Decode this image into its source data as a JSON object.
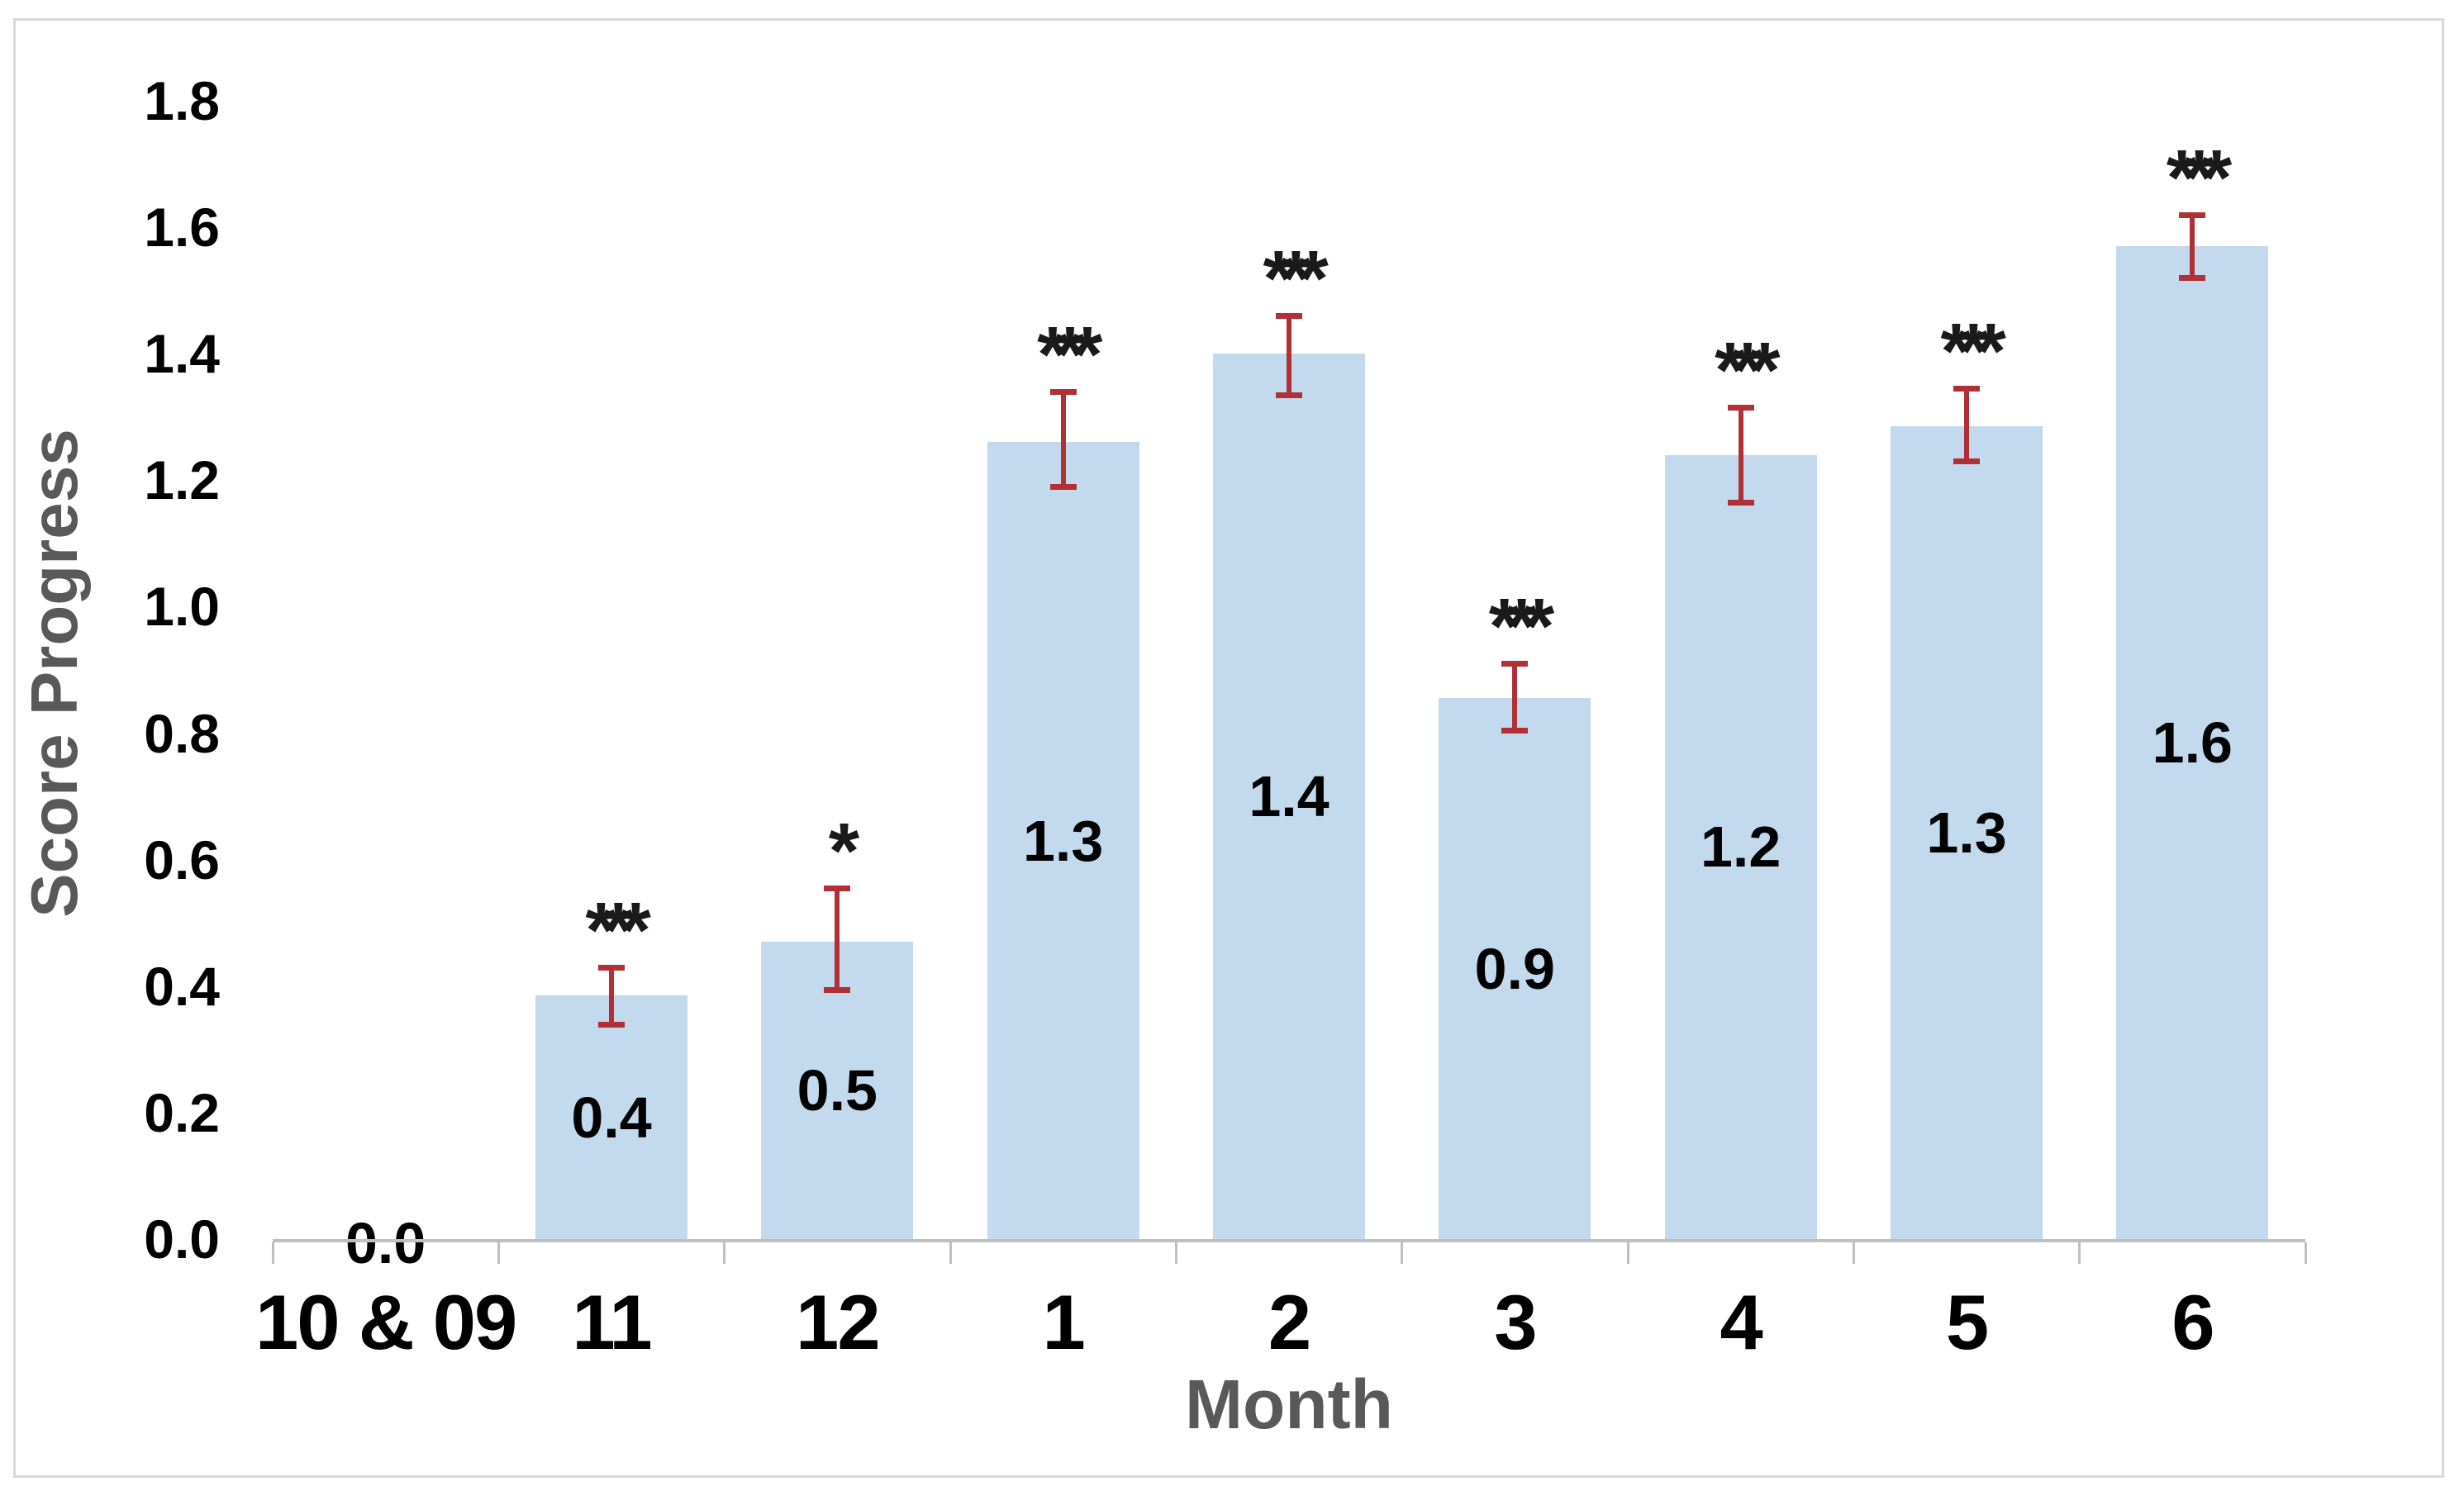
{
  "chart_data": {
    "type": "bar",
    "title": "",
    "xlabel": "Month",
    "ylabel": "Score Progress",
    "categories": [
      "10 & 09",
      "11",
      "12",
      "1",
      "2",
      "3",
      "4",
      "5",
      "6"
    ],
    "values": [
      0.0,
      0.4,
      0.5,
      1.3,
      1.4,
      0.9,
      1.2,
      1.3,
      1.6
    ],
    "data_labels": [
      "0.0",
      "0.4",
      "0.5",
      "1.3",
      "1.4",
      "0.9",
      "1.2",
      "1.3",
      "1.6"
    ],
    "bar_heights_plotted": [
      0,
      0.385,
      0.47,
      1.26,
      1.4,
      0.855,
      1.24,
      1.285,
      1.57
    ],
    "error_bars": [
      null,
      {
        "low": 0.34,
        "high": 0.43
      },
      {
        "low": 0.395,
        "high": 0.555
      },
      {
        "low": 1.19,
        "high": 1.34
      },
      {
        "low": 1.335,
        "high": 1.46
      },
      {
        "low": 0.805,
        "high": 0.91
      },
      {
        "low": 1.165,
        "high": 1.315
      },
      {
        "low": 1.23,
        "high": 1.345
      },
      {
        "low": 1.52,
        "high": 1.62
      }
    ],
    "significance": [
      "",
      "***",
      "*",
      "***",
      "***",
      "***",
      "***",
      "***",
      "***"
    ],
    "ylim": [
      0,
      1.8
    ],
    "ytick_labels": [
      "0.0",
      "0.2",
      "0.4",
      "0.6",
      "0.8",
      "1.0",
      "1.2",
      "1.4",
      "1.6",
      "1.8"
    ],
    "grid": false,
    "legend": null,
    "colors": {
      "bar_fill": "#c2d9ee",
      "error_bar": "#b03036",
      "axis_line": "#bfbfbf",
      "axis_title": "#595959",
      "tick_label": "#000000",
      "frame_border": "#d9d9d9",
      "background": "#ffffff"
    }
  }
}
